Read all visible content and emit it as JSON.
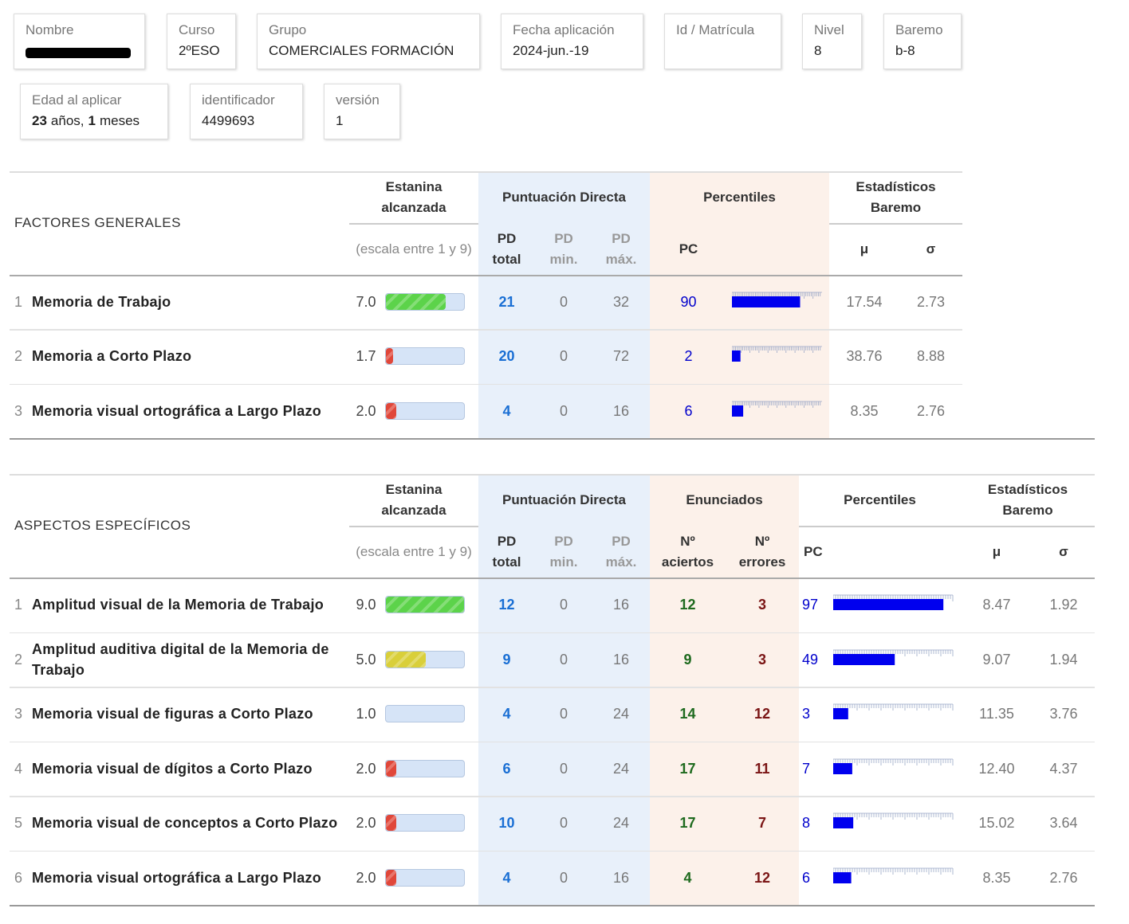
{
  "header": {
    "fields": [
      {
        "label": "Nombre"
      },
      {
        "label": "Curso",
        "value": "2ºESO"
      },
      {
        "label": "Grupo",
        "value": "COMERCIALES FORMACIÓN"
      },
      {
        "label": "Fecha aplicación",
        "value": "2024-jun.-19"
      },
      {
        "label": "Id / Matrícula"
      },
      {
        "label": "Nivel",
        "value": "8"
      },
      {
        "label": "Baremo",
        "value": "b-8"
      }
    ],
    "age": {
      "label": "Edad al aplicar",
      "years": "23",
      "years_unit": "años,",
      "months": "1",
      "months_unit": "meses"
    },
    "fields2": [
      {
        "label": "identificador",
        "value": "4499693"
      },
      {
        "label": "versión",
        "value": "1"
      }
    ]
  },
  "stanine_scale": [
    1,
    9
  ],
  "percentile_range": [
    0,
    100
  ],
  "tables": [
    {
      "title": "FACTORES GENERALES",
      "headers": {
        "stanine": "Estanina alcanzada",
        "stanine_note": "(escala entre 1 y 9)",
        "pd": "Puntuación Directa",
        "pd_total": "PD total",
        "pd_min": "PD min.",
        "pd_max": "PD máx.",
        "percentiles": "Percentiles",
        "pc": "PC",
        "stats": "Estadísticos Baremo",
        "mean": "μ",
        "sd": "σ"
      },
      "rows": [
        {
          "num": "1",
          "name": "Memoria de Trabajo",
          "stanine": "7.0",
          "stanine_color": "#5cd34a",
          "pd_total": "21",
          "pd_min": "0",
          "pd_max": "32",
          "pc": "90",
          "mean": "17.54",
          "sd": "2.73"
        },
        {
          "num": "2",
          "name": "Memoria a Corto Plazo",
          "stanine": "1.7",
          "stanine_color": "#e0473a",
          "pd_total": "20",
          "pd_min": "0",
          "pd_max": "72",
          "pc": "2",
          "mean": "38.76",
          "sd": "8.88"
        },
        {
          "num": "3",
          "name": "Memoria visual ortográfica a Largo Plazo",
          "stanine": "2.0",
          "stanine_color": "#e0473a",
          "pd_total": "4",
          "pd_min": "0",
          "pd_max": "16",
          "pc": "6",
          "mean": "8.35",
          "sd": "2.76"
        }
      ]
    },
    {
      "title": "ASPECTOS ESPECÍFICOS",
      "headers": {
        "stanine": "Estanina alcanzada",
        "stanine_note": "(escala entre 1 y 9)",
        "pd": "Puntuación Directa",
        "pd_total": "PD total",
        "pd_min": "PD min.",
        "pd_max": "PD máx.",
        "enunciados": "Enunciados",
        "hits": "Nº aciertos",
        "errors": "Nº errores",
        "percentiles": "Percentiles",
        "pc": "PC",
        "stats": "Estadísticos Baremo",
        "mean": "μ",
        "sd": "σ"
      },
      "rows": [
        {
          "num": "1",
          "name": "Amplitud visual de la Memoria de Trabajo",
          "stanine": "9.0",
          "stanine_color": "#5cd34a",
          "pd_total": "12",
          "pd_min": "0",
          "pd_max": "16",
          "hits": "12",
          "errors": "3",
          "pc": "97",
          "mean": "8.47",
          "sd": "1.92"
        },
        {
          "num": "2",
          "name": "Amplitud auditiva digital de la Memoria de Trabajo",
          "stanine": "5.0",
          "stanine_color": "#d9cf3a",
          "pd_total": "9",
          "pd_min": "0",
          "pd_max": "16",
          "hits": "9",
          "errors": "3",
          "pc": "49",
          "mean": "9.07",
          "sd": "1.94"
        },
        {
          "num": "3",
          "name": "Memoria visual de figuras a Corto Plazo",
          "stanine": "1.0",
          "stanine_color": "#e0473a",
          "pd_total": "4",
          "pd_min": "0",
          "pd_max": "24",
          "hits": "14",
          "errors": "12",
          "pc": "3",
          "mean": "11.35",
          "sd": "3.76"
        },
        {
          "num": "4",
          "name": "Memoria visual de dígitos a Corto Plazo",
          "stanine": "2.0",
          "stanine_color": "#e0473a",
          "pd_total": "6",
          "pd_min": "0",
          "pd_max": "24",
          "hits": "17",
          "errors": "11",
          "pc": "7",
          "mean": "12.40",
          "sd": "4.37"
        },
        {
          "num": "5",
          "name": "Memoria visual de conceptos a Corto Plazo",
          "stanine": "2.0",
          "stanine_color": "#e0473a",
          "pd_total": "10",
          "pd_min": "0",
          "pd_max": "24",
          "hits": "17",
          "errors": "7",
          "pc": "8",
          "mean": "15.02",
          "sd": "3.64"
        },
        {
          "num": "6",
          "name": "Memoria visual ortográfica a Largo Plazo",
          "stanine": "2.0",
          "stanine_color": "#e0473a",
          "pd_total": "4",
          "pd_min": "0",
          "pd_max": "16",
          "hits": "4",
          "errors": "12",
          "pc": "6",
          "mean": "8.35",
          "sd": "2.76"
        }
      ]
    }
  ]
}
